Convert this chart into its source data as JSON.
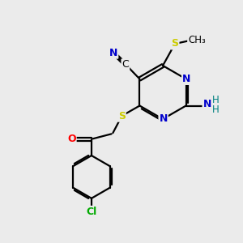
{
  "bg_color": "#ebebeb",
  "atom_colors": {
    "C": "#000000",
    "N": "#0000cc",
    "S": "#cccc00",
    "O": "#ff0000",
    "Cl": "#00aa00",
    "H": "#008080"
  },
  "bond_color": "#000000",
  "bond_width": 1.6,
  "dbo": 0.06,
  "figsize": [
    3.0,
    3.0
  ],
  "dpi": 100,
  "xlim": [
    0,
    10
  ],
  "ylim": [
    0,
    10
  ]
}
